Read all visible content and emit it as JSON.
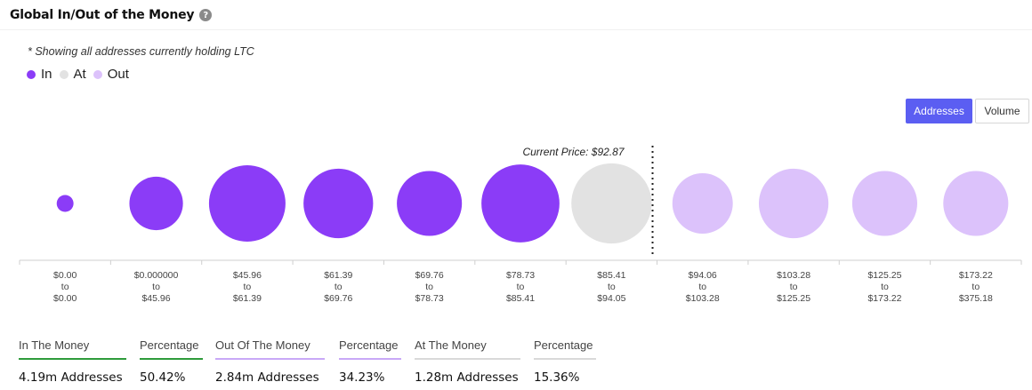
{
  "header": {
    "title": "Global In/Out of the Money",
    "help_icon": "question-circle-icon"
  },
  "note": "* Showing all addresses currently holding LTC",
  "legend": [
    {
      "label": "In",
      "color": "#8b3cf7"
    },
    {
      "label": "At",
      "color": "#e2e2e2"
    },
    {
      "label": "Out",
      "color": "#dcc2fb"
    }
  ],
  "toggles": {
    "addresses": "Addresses",
    "volume": "Volume",
    "selected": "addresses"
  },
  "chart_data": {
    "type": "bubble",
    "current_price_label": "Current Price: $92.87",
    "current_price": 92.87,
    "categories": [
      {
        "low": "$0.00",
        "high": "$0.00",
        "status": "in",
        "relative_size": 0.22
      },
      {
        "low": "$0.000000",
        "high": "$45.96",
        "status": "in",
        "relative_size": 0.7
      },
      {
        "low": "$45.96",
        "high": "$61.39",
        "status": "in",
        "relative_size": 1.0
      },
      {
        "low": "$61.39",
        "high": "$69.76",
        "status": "in",
        "relative_size": 0.91
      },
      {
        "low": "$69.76",
        "high": "$78.73",
        "status": "in",
        "relative_size": 0.85
      },
      {
        "low": "$78.73",
        "high": "$85.41",
        "status": "in",
        "relative_size": 1.02
      },
      {
        "low": "$85.41",
        "high": "$94.05",
        "status": "at",
        "relative_size": 1.05
      },
      {
        "low": "$94.06",
        "high": "$103.28",
        "status": "out",
        "relative_size": 0.79
      },
      {
        "low": "$103.28",
        "high": "$125.25",
        "status": "out",
        "relative_size": 0.91
      },
      {
        "low": "$125.25",
        "high": "$173.22",
        "status": "out",
        "relative_size": 0.85
      },
      {
        "low": "$173.22",
        "high": "$375.18",
        "status": "out",
        "relative_size": 0.85
      }
    ],
    "range_connector": "to",
    "colors": {
      "in": "#8b3cf7",
      "at": "#e2e2e2",
      "out": "#dcc2fb"
    }
  },
  "stats": [
    {
      "label": "In The Money",
      "value": "4.19m Addresses",
      "color": "#2e9b3b"
    },
    {
      "label": "Percentage",
      "value": "50.42%",
      "color": "#2e9b3b"
    },
    {
      "label": "Out Of The Money",
      "value": "2.84m Addresses",
      "color": "#c9a8f7"
    },
    {
      "label": "Percentage",
      "value": "34.23%",
      "color": "#c9a8f7"
    },
    {
      "label": "At The Money",
      "value": "1.28m Addresses",
      "color": "#d9d9d9"
    },
    {
      "label": "Percentage",
      "value": "15.36%",
      "color": "#d9d9d9"
    }
  ]
}
